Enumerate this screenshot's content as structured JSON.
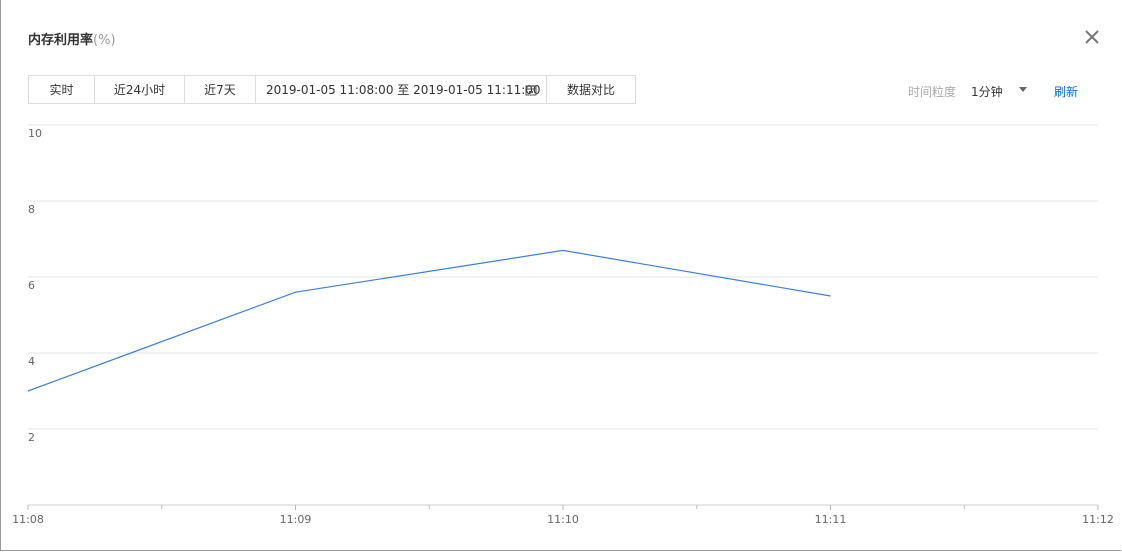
{
  "header": {
    "title": "内存利用率",
    "unit": "(%)"
  },
  "toolbar": {
    "buttons": [
      "实时",
      "近24小时",
      "近7天"
    ],
    "date_range": "2019-01-05 11:08:00 至 2019-01-05 11:11:00",
    "compare": "数据对比",
    "granularity_label": "时间粒度",
    "granularity": "1分钟",
    "refresh": "刷新"
  },
  "chart_data": {
    "type": "line",
    "categories": [
      "11:08",
      "11:09",
      "11:10",
      "11:11",
      "11:12"
    ],
    "series": [
      {
        "name": "内存利用率",
        "color": "#3d7fd6",
        "values": [
          3.0,
          5.6,
          6.7,
          5.5,
          null
        ]
      }
    ],
    "ylim": [
      0,
      10
    ],
    "yticks": [
      2,
      4,
      6,
      8,
      10
    ],
    "grid": true
  }
}
